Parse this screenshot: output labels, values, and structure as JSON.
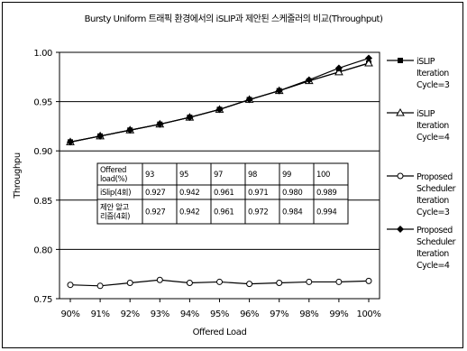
{
  "chart_data": {
    "type": "line",
    "title": "Bursty Uniform 트래픽 환경에서의 iSLIP과 제안된 스케줄러의 비교(Throughput)",
    "xlabel": "Offered Load",
    "ylabel": "Throughpu",
    "categories": [
      "90%",
      "91%",
      "92%",
      "93%",
      "94%",
      "95%",
      "96%",
      "97%",
      "98%",
      "99%",
      "100%"
    ],
    "ylim": [
      0.75,
      1.0
    ],
    "yticks": [
      "0.75",
      "0.80",
      "0.85",
      "0.90",
      "0.95",
      "1.00"
    ],
    "grid": "horizontal",
    "legend_position": "right",
    "series": [
      {
        "name": [
          "iSLIP",
          "Iteration",
          "Cycle=3"
        ],
        "marker": "square",
        "values": [
          0.909,
          0.915,
          0.921,
          0.927,
          0.934,
          0.942,
          0.952,
          0.961,
          0.971,
          0.98,
          0.989
        ]
      },
      {
        "name": [
          "iSLIP",
          "Iteration",
          "Cycle=4"
        ],
        "marker": "triangle",
        "values": [
          0.909,
          0.915,
          0.921,
          0.927,
          0.934,
          0.942,
          0.952,
          0.961,
          0.971,
          0.98,
          0.989
        ]
      },
      {
        "name": [
          "Proposed",
          "Scheduler",
          "Iteration",
          "Cycle=3"
        ],
        "marker": "circle",
        "values": [
          0.764,
          0.763,
          0.766,
          0.769,
          0.766,
          0.767,
          0.765,
          0.766,
          0.767,
          0.767,
          0.768
        ]
      },
      {
        "name": [
          "Proposed",
          "Scheduler",
          "Iteration",
          "Cycle=4"
        ],
        "marker": "diamond",
        "values": [
          0.909,
          0.915,
          0.921,
          0.927,
          0.934,
          0.942,
          0.952,
          0.961,
          0.972,
          0.984,
          0.994
        ]
      }
    ],
    "table": {
      "rows": [
        [
          [
            "Offered",
            "load(%)"
          ],
          [
            "93"
          ],
          [
            "95"
          ],
          [
            "97"
          ],
          [
            "98"
          ],
          [
            "99"
          ],
          [
            "100"
          ]
        ],
        [
          [
            "iSlip(4회)"
          ],
          [
            "0.927"
          ],
          [
            "0.942"
          ],
          [
            "0.961"
          ],
          [
            "0.971"
          ],
          [
            "0.980"
          ],
          [
            "0.989"
          ]
        ],
        [
          [
            "제안 알고",
            "리즘(4회)"
          ],
          [
            "0.927"
          ],
          [
            "0.942"
          ],
          [
            "0.961"
          ],
          [
            "0.972"
          ],
          [
            "0.984"
          ],
          [
            "0.994"
          ]
        ]
      ]
    }
  }
}
